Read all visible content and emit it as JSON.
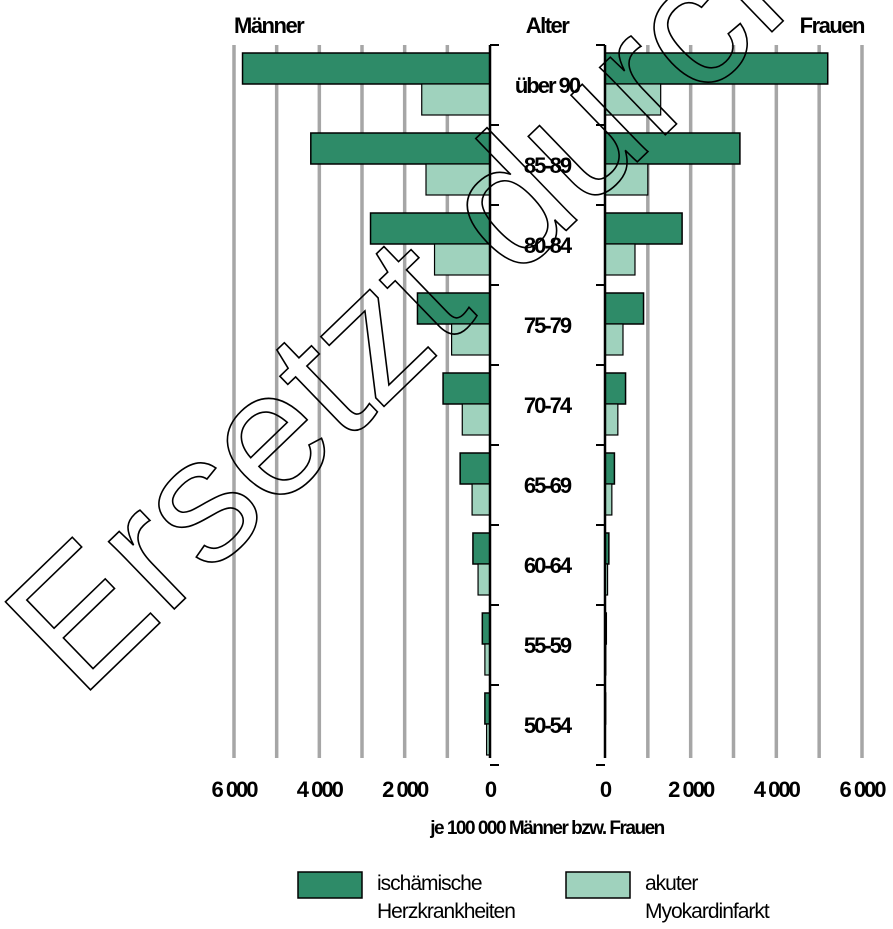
{
  "chart_data": {
    "type": "bar",
    "orientation": "horizontal-butterfly",
    "left_header": "Männer",
    "center_header": "Alter",
    "right_header": "Frauen",
    "xlabel": "je 100 000 Männer bzw. Frauen",
    "xlim_left": [
      6000,
      0
    ],
    "xlim_right": [
      0,
      6000
    ],
    "tick_labels_left": [
      "6 000",
      "4 000",
      "2 000",
      "0"
    ],
    "tick_labels_right": [
      "0",
      "2 000",
      "4 000",
      "6 000"
    ],
    "categories": [
      "über 90",
      "85-89",
      "80-84",
      "75-79",
      "70-74",
      "65-69",
      "60-64",
      "55-59",
      "50-54"
    ],
    "series": [
      {
        "name": "ischämische Herzkrankheiten",
        "color": "#2e8b68",
        "men": [
          5800,
          4200,
          2800,
          1700,
          1100,
          700,
          400,
          180,
          120
        ],
        "women": [
          5200,
          3150,
          1800,
          900,
          480,
          220,
          90,
          30,
          15
        ]
      },
      {
        "name": "akuter Myokardinfarkt",
        "color": "#9fd2bd",
        "men": [
          1600,
          1500,
          1300,
          900,
          650,
          420,
          280,
          120,
          80
        ],
        "women": [
          1300,
          1000,
          700,
          420,
          300,
          160,
          60,
          20,
          8
        ]
      }
    ],
    "grid": true,
    "legend_position": "bottom"
  },
  "legend": {
    "item1_line1": "ischämische",
    "item1_line2": "Herzkrankheiten",
    "item2_line1": "akuter",
    "item2_line2": "Myokardinfarkt"
  },
  "watermark": "Ersetzt durch Version"
}
